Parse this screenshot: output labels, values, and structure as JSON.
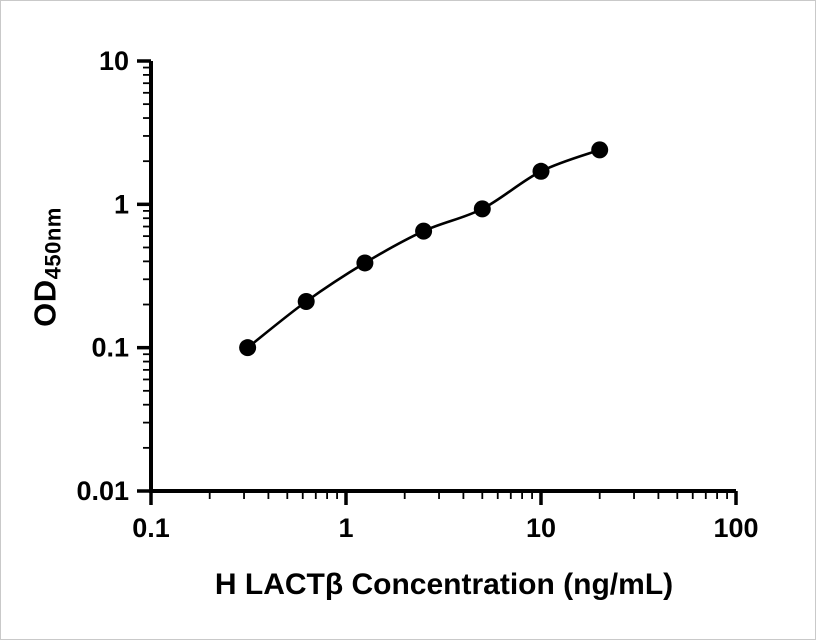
{
  "figure": {
    "background_color": "#ffffff",
    "border_color": "#c9c9c9",
    "ink_color": "#000000"
  },
  "chart_data": {
    "type": "scatter",
    "title": "",
    "xlabel": "H LACTβ Concentration (ng/mL)",
    "ylabel": "OD",
    "ylabel_subscript": "450nm",
    "x_scale": "log",
    "y_scale": "log",
    "xlim": [
      0.1,
      100
    ],
    "ylim": [
      0.01,
      10
    ],
    "x_ticks": [
      0.1,
      1,
      10,
      100
    ],
    "x_tick_labels": [
      "0.1",
      "1",
      "10",
      "100"
    ],
    "y_ticks": [
      0.01,
      0.1,
      1,
      10
    ],
    "y_tick_labels": [
      "0.01",
      "0.1",
      "1",
      "10"
    ],
    "minor_ticks": true,
    "grid": false,
    "legend": false,
    "series": [
      {
        "marker": "circle",
        "marker_color": "#000000",
        "line_color": "#000000",
        "line_style": "smooth-fit-curve",
        "points": [
          {
            "x": 0.313,
            "y": 0.1
          },
          {
            "x": 0.625,
            "y": 0.21
          },
          {
            "x": 1.25,
            "y": 0.39
          },
          {
            "x": 2.5,
            "y": 0.65
          },
          {
            "x": 5,
            "y": 0.93
          },
          {
            "x": 10,
            "y": 1.7
          },
          {
            "x": 20,
            "y": 2.4
          }
        ]
      }
    ]
  }
}
